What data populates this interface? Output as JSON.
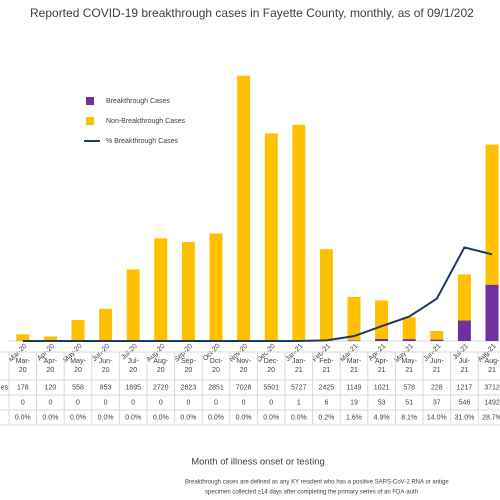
{
  "chart_data": {
    "type": "bar",
    "title": "Reported COVID-19 breakthrough cases in Fayette County, monthly, as of 09/1/202",
    "x_label": "Month of illness onset or testing",
    "notes": [
      "Breakthrough cases are defined as any KY resident who has a positive SARS-CoV-2 RNA or antige",
      "specimen collected ≥14 days after completing the primary series of an FDA-auth"
    ],
    "table_row_label": "es",
    "categories": [
      "Mar-20",
      "Apr-20",
      "May-20",
      "Jun-20",
      "Jul-20",
      "Aug-20",
      "Sep-20",
      "Oct-20",
      "Nov-20",
      "Dec-20",
      "Jan-21",
      "Feb-21",
      "Mar-21",
      "Apr-21",
      "May-21",
      "Jun-21",
      "Jul-21",
      "Aug-21"
    ],
    "ylim": [
      0,
      8000
    ],
    "y2lim": [
      0,
      100
    ],
    "stacked": true,
    "series": [
      {
        "name": "Non-Breakthrough Cases",
        "color": "#ffc000",
        "values": [
          178,
          120,
          558,
          853,
          1895,
          2720,
          2623,
          2851,
          7028,
          5501,
          5727,
          2425,
          1149,
          1021,
          578,
          228,
          1217,
          3712
        ]
      },
      {
        "name": "Breakthrough Cases",
        "color": "#7030a0",
        "values": [
          0,
          0,
          0,
          0,
          0,
          0,
          0,
          0,
          0,
          0,
          1,
          6,
          19,
          53,
          51,
          37,
          546,
          1492
        ]
      },
      {
        "name": "% Breakthrough Cases",
        "color": "#1f3864",
        "type": "line",
        "axis": "y2",
        "values": [
          0,
          0,
          0,
          0,
          0,
          0,
          0,
          0,
          0,
          0,
          0,
          0.2,
          1.6,
          4.9,
          8.1,
          14.0,
          31.0,
          28.7
        ],
        "value_labels": [
          "0.0%",
          "0.0%",
          "0.0%",
          "0.0%",
          "0.0%",
          "0.0%",
          "0.0%",
          "0.0%",
          "0.0%",
          "0.0%",
          "0.0%",
          "0.2%",
          "1.6%",
          "4.9%",
          "8.1%",
          "14.0%",
          "31.0%",
          "28.7%"
        ]
      }
    ],
    "legend_order": [
      1,
      0,
      2
    ]
  }
}
